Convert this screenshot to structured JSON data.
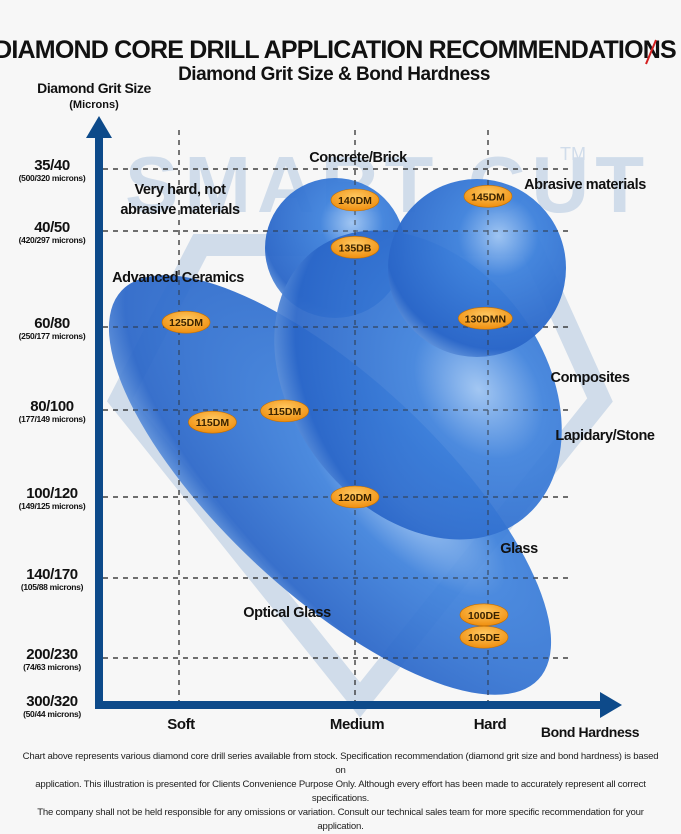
{
  "header": {
    "title": "DIAMOND CORE DRILL APPLICATION RECOMMENDATIONS",
    "subtitle": "Diamond Grit Size & Bond Hardness"
  },
  "watermark": {
    "text": "SMART CUT",
    "tm": "TM"
  },
  "chart_data": {
    "type": "scatter",
    "title": "Diamond Grit Size & Bond Hardness",
    "ylabel": "Diamond Grit Size",
    "ylabel_sub": "(Microns)",
    "xlabel": "Bond Hardness",
    "x_ticks": [
      "Soft",
      "Medium",
      "Hard"
    ],
    "y_ticks": [
      {
        "label": "35/40",
        "sub": "(500/320 microns)"
      },
      {
        "label": "40/50",
        "sub": "(420/297 microns)"
      },
      {
        "label": "60/80",
        "sub": "(250/177 microns)"
      },
      {
        "label": "80/100",
        "sub": "(177/149 microns)"
      },
      {
        "label": "100/120",
        "sub": "(149/125 microns)"
      },
      {
        "label": "140/170",
        "sub": "(105/88 microns)"
      },
      {
        "label": "200/230",
        "sub": "(74/63 microns)"
      },
      {
        "label": "300/320",
        "sub": "(50/44 microns)"
      }
    ],
    "grid": true,
    "points": [
      {
        "label": "140DM",
        "x": 1.0,
        "y": 0.5
      },
      {
        "label": "145DM",
        "x": 2.0,
        "y": 0.44
      },
      {
        "label": "135DB",
        "x": 1.0,
        "y": 1.17
      },
      {
        "label": "130DMN",
        "x": 1.98,
        "y": 1.91
      },
      {
        "label": "125DM",
        "x": 0.04,
        "y": 1.95
      },
      {
        "label": "115DM",
        "x": 0.6,
        "y": 3.01
      },
      {
        "label": "115DM",
        "x": 0.19,
        "y": 3.14
      },
      {
        "label": "120DM",
        "x": 1.0,
        "y": 4.0
      },
      {
        "label": "100DE",
        "x": 1.97,
        "y": 5.46
      },
      {
        "label": "105DE",
        "x": 1.97,
        "y": 5.74
      }
    ],
    "regions": {
      "concrete": "Concrete/Brick",
      "very_hard_1": "Very hard, not",
      "very_hard_2": "abrasive materials",
      "abrasive": "Abrasive materials",
      "ceramics": "Advanced Ceramics",
      "composites": "Composites",
      "lapidary": "Lapidary/Stone",
      "glass": "Glass",
      "optical": "Optical Glass"
    },
    "colors": {
      "axis": "#0d4a8a",
      "bubble": "#2a6fd0",
      "pill": "#f39a14"
    }
  },
  "footer": {
    "line1": "Chart above represents various diamond core drill series available from stock. Specification recommendation (diamond grit size and bond hardness) is based on",
    "line2": "application. This illustration is presented for Clients Convenience Purpose Only. Although every effort has been made to accurately represent all correct specifications.",
    "line3": "The company shall not be held responsible for any omissions or variation. Consult our technical sales team for more specific recommendation for your application."
  }
}
